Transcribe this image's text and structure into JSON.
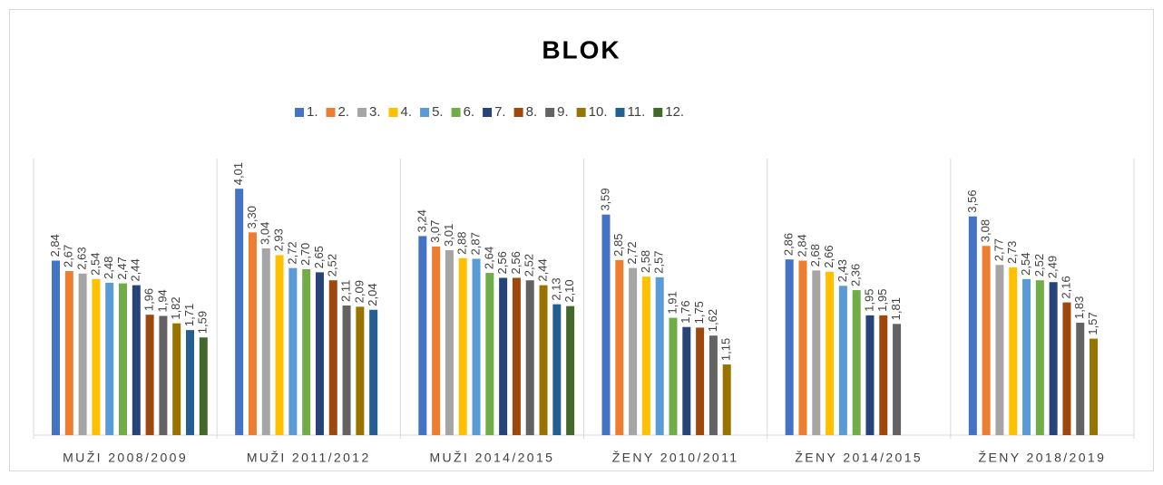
{
  "chart_data": {
    "type": "bar",
    "title": "BLOK",
    "categories": [
      "MUŽI 2008/2009",
      "MUŽI 2011/2012",
      "MUŽI 2014/2015",
      "ŽENY 2010/2011",
      "ŽENY 2014/2015",
      "ŽENY 2018/2019"
    ],
    "ylim": [
      0,
      4.5
    ],
    "series": [
      {
        "name": "1.",
        "color": "#4472C4",
        "values": [
          2.84,
          4.01,
          3.24,
          3.59,
          2.86,
          3.56
        ],
        "value_labels": [
          "2,84",
          "4,01",
          "3,24",
          "3,59",
          "2,86",
          "3,56"
        ]
      },
      {
        "name": "2.",
        "color": "#ED7D31",
        "values": [
          2.67,
          3.3,
          3.07,
          2.85,
          2.84,
          3.08
        ],
        "value_labels": [
          "2,67",
          "3,30",
          "3,07",
          "2,85",
          "2,84",
          "3,08"
        ]
      },
      {
        "name": "3.",
        "color": "#A5A5A5",
        "values": [
          2.63,
          3.04,
          3.01,
          2.72,
          2.68,
          2.77
        ],
        "value_labels": [
          "2,63",
          "3,04",
          "3,01",
          "2,72",
          "2,68",
          "2,77"
        ]
      },
      {
        "name": "4.",
        "color": "#FFC000",
        "values": [
          2.54,
          2.93,
          2.88,
          2.58,
          2.66,
          2.73
        ],
        "value_labels": [
          "2,54",
          "2,93",
          "2,88",
          "2,58",
          "2,66",
          "2,73"
        ]
      },
      {
        "name": "5.",
        "color": "#5B9BD5",
        "values": [
          2.48,
          2.72,
          2.87,
          2.57,
          2.43,
          2.54
        ],
        "value_labels": [
          "2,48",
          "2,72",
          "2,87",
          "2,57",
          "2,43",
          "2,54"
        ]
      },
      {
        "name": "6.",
        "color": "#70AD47",
        "values": [
          2.47,
          2.7,
          2.64,
          1.91,
          2.36,
          2.52
        ],
        "value_labels": [
          "2,47",
          "2,70",
          "2,64",
          "1,91",
          "2,36",
          "2,52"
        ]
      },
      {
        "name": "7.",
        "color": "#264478",
        "values": [
          2.44,
          2.65,
          2.56,
          1.76,
          1.95,
          2.49
        ],
        "value_labels": [
          "2,44",
          "2,65",
          "2,56",
          "1,76",
          "1,95",
          "2,49"
        ]
      },
      {
        "name": "8.",
        "color": "#9E480E",
        "values": [
          1.96,
          2.52,
          2.56,
          1.75,
          1.95,
          2.16
        ],
        "value_labels": [
          "1,96",
          "2,52",
          "2,56",
          "1,75",
          "1,95",
          "2,16"
        ]
      },
      {
        "name": "9.",
        "color": "#636363",
        "values": [
          1.94,
          2.11,
          2.52,
          1.62,
          1.81,
          1.83
        ],
        "value_labels": [
          "1,94",
          "2,11",
          "2,52",
          "1,62",
          "1,81",
          "1,83"
        ]
      },
      {
        "name": "10.",
        "color": "#997300",
        "values": [
          1.82,
          2.09,
          2.44,
          1.15,
          null,
          1.57
        ],
        "value_labels": [
          "1,82",
          "2,09",
          "2,44",
          "1,15",
          null,
          "1,57"
        ]
      },
      {
        "name": "11.",
        "color": "#255E91",
        "values": [
          1.71,
          2.04,
          2.13,
          null,
          null,
          null
        ],
        "value_labels": [
          "1,71",
          "2,04",
          "2,13",
          null,
          null,
          null
        ]
      },
      {
        "name": "12.",
        "color": "#43682B",
        "values": [
          1.59,
          null,
          2.1,
          null,
          null,
          null
        ],
        "value_labels": [
          "1,59",
          null,
          "2,10",
          null,
          null,
          null
        ]
      }
    ]
  }
}
